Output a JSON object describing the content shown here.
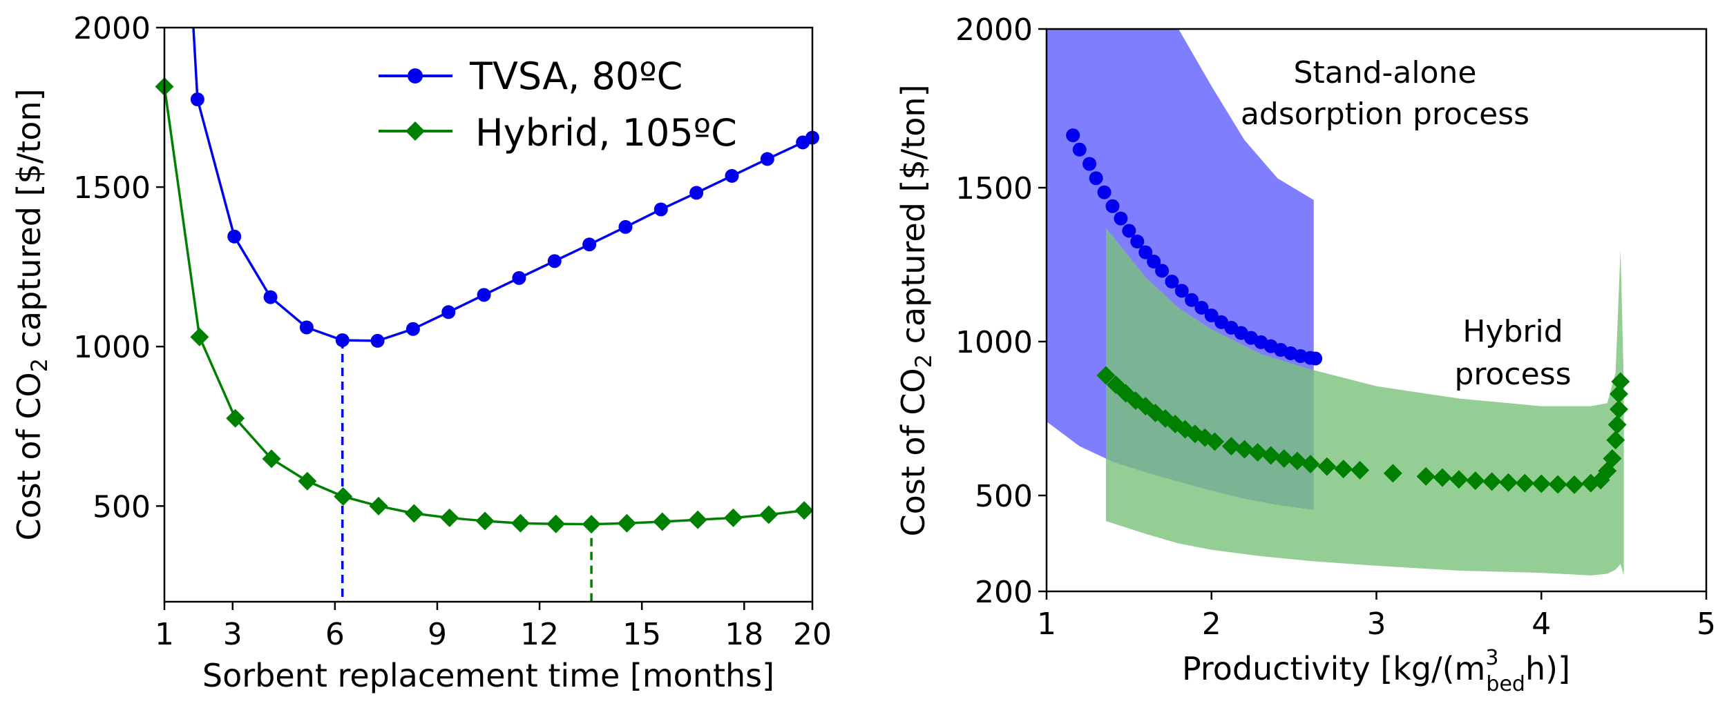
{
  "chart_data": [
    {
      "type": "line",
      "title": "",
      "xlabel": "Sorbent replacement time [months]",
      "ylabel": {
        "prefix": "Cost of CO",
        "sub": "2",
        "suffix": " captured [$/ton]"
      },
      "xlim": [
        1,
        20
      ],
      "ylim": [
        200,
        2000
      ],
      "xticks": [
        1,
        3,
        6,
        9,
        12,
        15,
        18,
        20
      ],
      "yticks": [
        500,
        1000,
        1500,
        2000
      ],
      "legend_position": "top-right",
      "series": [
        {
          "name": "TVSA, 80ºC",
          "color": "#0000ee",
          "marker": "circle",
          "x": [
            1.97,
            3.05,
            4.11,
            5.17,
            6.22,
            7.25,
            8.29,
            9.33,
            10.37,
            11.4,
            12.44,
            13.46,
            14.52,
            15.56,
            16.6,
            17.64,
            18.68,
            19.72,
            20
          ],
          "y": [
            1775,
            1345,
            1155,
            1060,
            1020,
            1018,
            1055,
            1108,
            1162,
            1215,
            1268,
            1320,
            1375,
            1430,
            1482,
            1535,
            1588,
            1640,
            1655
          ],
          "x_curve_start": [
            1.85,
            2000
          ],
          "optimum": {
            "x": 6.22,
            "y": 1020
          }
        },
        {
          "name": "Hybrid, 105ºC",
          "color": "#008000",
          "marker": "diamond",
          "x": [
            1,
            2.03,
            3.08,
            4.14,
            5.19,
            6.24,
            7.28,
            8.32,
            9.36,
            10.4,
            11.44,
            12.48,
            13.52,
            14.56,
            15.6,
            16.64,
            17.68,
            18.72,
            19.76
          ],
          "y": [
            1815,
            1030,
            775,
            648,
            578,
            530,
            500,
            477,
            463,
            453,
            446,
            444,
            443,
            446,
            451,
            457,
            463,
            473,
            486
          ],
          "optimum": {
            "x": 13.52,
            "y": 443
          }
        }
      ]
    },
    {
      "type": "scatter",
      "title": "",
      "xlabel": {
        "prefix": "Productivity [kg/(m",
        "sup": "3",
        "sub": "bed",
        "suffix": "h)]"
      },
      "ylabel": {
        "prefix": "Cost of CO",
        "sub": "2",
        "suffix": " captured [$/ton]"
      },
      "xlim": [
        1,
        5
      ],
      "ylim": [
        200,
        2000
      ],
      "xticks": [
        1,
        2,
        3,
        4,
        5
      ],
      "yticks": [
        200,
        500,
        1000,
        1500,
        2000
      ],
      "annotations": {
        "standalone": [
          "Stand-alone",
          "adsorption process"
        ],
        "hybrid": [
          "Hybrid",
          "process"
        ]
      },
      "bands": [
        {
          "name": "Stand-alone adsorption process",
          "color": "#7777ff",
          "x": [
            1.0,
            1.2,
            1.4,
            1.6,
            1.8,
            2.0,
            2.2,
            2.4,
            2.62
          ],
          "upper": [
            2000,
            2000,
            2000,
            2000,
            2000,
            1820,
            1650,
            1530,
            1460
          ],
          "lower": [
            740,
            660,
            610,
            575,
            545,
            515,
            490,
            470,
            455
          ]
        },
        {
          "name": "Hybrid process",
          "color": "#79c279",
          "x": [
            1.36,
            1.6,
            1.8,
            2.0,
            2.3,
            2.6,
            3.0,
            3.5,
            4.0,
            4.3,
            4.4,
            4.45,
            4.48,
            4.5
          ],
          "upper": [
            1370,
            1210,
            1110,
            1040,
            960,
            910,
            855,
            815,
            790,
            790,
            800,
            900,
            1300,
            860
          ],
          "lower": [
            420,
            380,
            350,
            330,
            310,
            295,
            280,
            265,
            258,
            250,
            255,
            268,
            285,
            250
          ]
        }
      ],
      "series": [
        {
          "name": "TVSA, 80ºC",
          "color": "#0000ee",
          "marker": "circle",
          "x": [
            1.16,
            1.2,
            1.26,
            1.3,
            1.35,
            1.4,
            1.45,
            1.5,
            1.55,
            1.6,
            1.65,
            1.7,
            1.76,
            1.82,
            1.88,
            1.94,
            2.0,
            2.06,
            2.12,
            2.18,
            2.24,
            2.3,
            2.36,
            2.42,
            2.48,
            2.54,
            2.6,
            2.63
          ],
          "y": [
            1665,
            1620,
            1575,
            1530,
            1485,
            1440,
            1400,
            1360,
            1325,
            1290,
            1260,
            1230,
            1195,
            1165,
            1135,
            1110,
            1085,
            1063,
            1045,
            1028,
            1012,
            998,
            985,
            973,
            962,
            953,
            947,
            945
          ]
        },
        {
          "name": "Hybrid, 105ºC",
          "color": "#008000",
          "marker": "diamond",
          "x": [
            1.36,
            1.42,
            1.48,
            1.54,
            1.6,
            1.66,
            1.72,
            1.78,
            1.84,
            1.9,
            1.96,
            2.02,
            2.12,
            2.2,
            2.28,
            2.36,
            2.44,
            2.52,
            2.6,
            2.7,
            2.8,
            2.9,
            3.1,
            3.3,
            3.4,
            3.5,
            3.6,
            3.7,
            3.8,
            3.9,
            4.0,
            4.1,
            4.2,
            4.3,
            4.36,
            4.4,
            4.43,
            4.45,
            4.46,
            4.47,
            4.47,
            4.48
          ],
          "y": [
            890,
            860,
            832,
            808,
            790,
            768,
            750,
            732,
            715,
            700,
            688,
            675,
            660,
            650,
            640,
            630,
            620,
            612,
            602,
            594,
            586,
            582,
            572,
            562,
            558,
            552,
            548,
            545,
            542,
            540,
            538,
            536,
            535,
            540,
            550,
            580,
            620,
            680,
            730,
            780,
            830,
            870
          ]
        }
      ]
    }
  ]
}
